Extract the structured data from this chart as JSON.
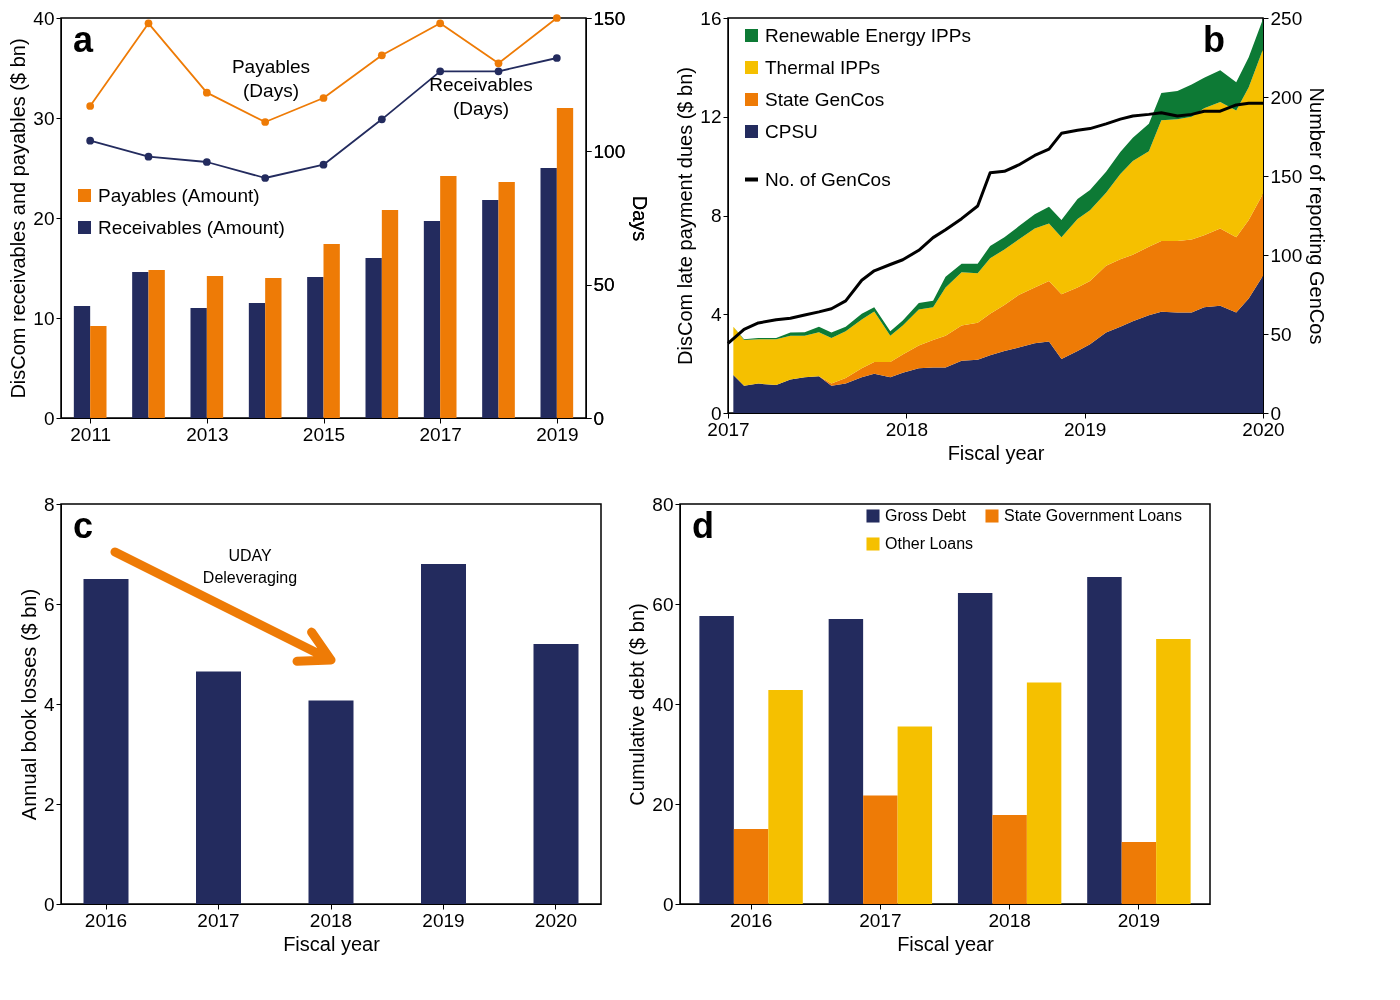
{
  "chart_data": [
    {
      "type": "bar",
      "title": "a",
      "x": [
        2011,
        2012,
        2013,
        2014,
        2015,
        2016,
        2017,
        2018,
        2019
      ],
      "xlim": [
        2010.5,
        2019.5
      ],
      "xticks": [
        2011,
        2013,
        2015,
        2017,
        2019
      ],
      "ylabel": "DisCom receivables and payables ($ bn)",
      "y2label": "Days",
      "ylim": [
        0,
        40
      ],
      "yticks": [
        0,
        10,
        20,
        30,
        40
      ],
      "y2lim": [
        0,
        150
      ],
      "y2ticks": [
        0,
        50,
        100,
        150
      ],
      "legend": "left",
      "marker": "circle",
      "series": [
        {
          "name": "Receivables (Amount)",
          "color": "#232b5e",
          "values": [
            11.2,
            14.6,
            11.0,
            11.5,
            14.1,
            16.0,
            19.7,
            21.8,
            25.0
          ]
        },
        {
          "name": "Payables (Amount)",
          "color": "#ee7b06",
          "values": [
            9.2,
            14.8,
            14.2,
            14.0,
            17.4,
            20.8,
            24.2,
            23.6,
            31.0
          ]
        },
        {
          "name": "Receivables (Days)",
          "type": "line",
          "axis": "y2",
          "color": "#232b5e",
          "values": [
            104,
            98,
            96,
            90,
            95,
            112,
            130,
            130,
            135
          ]
        },
        {
          "name": "Payables (Days)",
          "type": "line",
          "axis": "y2",
          "color": "#ee7b06",
          "values": [
            117,
            148,
            122,
            111,
            120,
            136,
            148,
            133,
            150
          ]
        }
      ]
    },
    {
      "type": "area",
      "stacked": true,
      "title": "b",
      "xlabel": "Fiscal year",
      "ylabel": "DisCom late payment dues ($ bn)",
      "y2label": "Number of reporting GenCos",
      "xlim": [
        2017,
        2020
      ],
      "xticks": [
        2017,
        2018,
        2019,
        2020
      ],
      "ylim": [
        0,
        16
      ],
      "yticks": [
        0,
        4,
        8,
        12,
        16
      ],
      "y2lim": [
        0,
        250
      ],
      "y2ticks": [
        0,
        50,
        100,
        150,
        200,
        250
      ],
      "legend": "top left",
      "x": [
        2017.03,
        2017.09,
        2017.17,
        2017.27,
        2017.35,
        2017.43,
        2017.51,
        2017.58,
        2017.66,
        2017.75,
        2017.82,
        2017.91,
        2017.98,
        2018.07,
        2018.15,
        2018.22,
        2018.31,
        2018.4,
        2018.47,
        2018.55,
        2018.63,
        2018.72,
        2018.8,
        2018.87,
        2018.96,
        2019.03,
        2019.12,
        2019.2,
        2019.27,
        2019.36,
        2019.43,
        2019.52,
        2019.6,
        2019.67,
        2019.76,
        2019.85,
        2019.92,
        2020.0
      ],
      "series": [
        {
          "name": "CPSU",
          "color": "#232b5e",
          "values": [
            1.54,
            1.1,
            1.19,
            1.13,
            1.36,
            1.45,
            1.49,
            1.1,
            1.19,
            1.45,
            1.59,
            1.45,
            1.63,
            1.81,
            1.84,
            1.84,
            2.12,
            2.16,
            2.34,
            2.51,
            2.65,
            2.83,
            2.9,
            2.19,
            2.51,
            2.78,
            3.26,
            3.49,
            3.72,
            3.96,
            4.1,
            4.07,
            4.07,
            4.28,
            4.34,
            4.07,
            4.64,
            5.56
          ]
        },
        {
          "name": "State GenCos",
          "color": "#ee7b06",
          "values": [
            0,
            0,
            0,
            0,
            0,
            0,
            0,
            0.09,
            0.23,
            0.36,
            0.48,
            0.62,
            0.74,
            0.92,
            1.12,
            1.29,
            1.42,
            1.5,
            1.68,
            1.86,
            2.13,
            2.25,
            2.45,
            2.62,
            2.57,
            2.57,
            2.7,
            2.74,
            2.69,
            2.77,
            2.87,
            2.9,
            2.96,
            2.92,
            3.13,
            3.05,
            3.18,
            3.32
          ]
        },
        {
          "name": "Thermal IPPs",
          "color": "#f5c000",
          "values": [
            1.95,
            1.86,
            1.8,
            1.86,
            1.77,
            1.68,
            1.78,
            1.85,
            1.89,
            1.98,
            2.04,
            1.06,
            1.17,
            1.46,
            1.32,
            1.95,
            2.16,
            2.0,
            2.25,
            2.25,
            2.25,
            2.39,
            2.33,
            2.31,
            2.78,
            2.86,
            2.96,
            3.45,
            3.8,
            3.87,
            4.89,
            4.93,
            4.97,
            5.14,
            5.13,
            5.13,
            5.38,
            5.85
          ]
        },
        {
          "name": "Renewable Energy IPPs",
          "color": "#0d7a35",
          "values": [
            0,
            0.03,
            0.05,
            0.05,
            0.13,
            0.14,
            0.22,
            0.22,
            0.18,
            0.23,
            0.17,
            0.18,
            0.21,
            0.27,
            0.27,
            0.44,
            0.35,
            0.39,
            0.49,
            0.5,
            0.53,
            0.58,
            0.67,
            0.7,
            0.81,
            0.82,
            0.85,
            0.89,
            0.94,
            1.12,
            1.1,
            1.14,
            1.31,
            1.24,
            1.28,
            1.15,
            1.21,
            1.23
          ]
        },
        {
          "name": "No. of GenCos",
          "type": "line",
          "axis": "y2",
          "color": "#000000",
          "x": [
            2017.0,
            2017.09,
            2017.17,
            2017.27,
            2017.35,
            2017.43,
            2017.51,
            2017.58,
            2017.66,
            2017.75,
            2017.82,
            2017.91,
            2017.98,
            2018.07,
            2018.15,
            2018.22,
            2018.31,
            2018.4,
            2018.47,
            2018.55,
            2018.63,
            2018.72,
            2018.8,
            2018.87,
            2018.96,
            2019.03,
            2019.12,
            2019.2,
            2019.27,
            2019.36,
            2019.43,
            2019.52,
            2019.6,
            2019.67,
            2019.76,
            2019.85,
            2019.92,
            2020.0
          ],
          "values": [
            44,
            53,
            57,
            59,
            60,
            62,
            64,
            66,
            71,
            84,
            90,
            94,
            97,
            103,
            111,
            116,
            123,
            131,
            152,
            153,
            157,
            163,
            167,
            177,
            179,
            180,
            183,
            186,
            188,
            189,
            190,
            188,
            189,
            191,
            191,
            195,
            196,
            196
          ]
        }
      ]
    },
    {
      "type": "bar",
      "title": "c",
      "categories": [
        "2016",
        "2017",
        "2018",
        "2019",
        "2020"
      ],
      "values": [
        6.5,
        4.65,
        4.07,
        6.8,
        5.2
      ],
      "color": "#232b5e",
      "xlabel": "Fiscal year",
      "ylabel": "Annual book losses ($ bn)",
      "ylim": [
        0,
        8
      ],
      "yticks": [
        0,
        2,
        4,
        6,
        8
      ],
      "annotations": [
        "UDAY Deleveraging"
      ]
    },
    {
      "type": "bar",
      "title": "d",
      "categories": [
        "2016",
        "2017",
        "2018",
        "2019"
      ],
      "xlabel": "Fiscal year",
      "ylabel": "Cumulative debt ($ bn)",
      "ylim": [
        0,
        80
      ],
      "yticks": [
        0,
        20,
        40,
        60,
        80
      ],
      "legend": "top right",
      "series": [
        {
          "name": "Gross Debt",
          "color": "#232b5e",
          "values": [
            57.6,
            57.0,
            62.2,
            65.4
          ]
        },
        {
          "name": "State Government Loans",
          "color": "#ee7b06",
          "values": [
            15.0,
            21.7,
            17.8,
            12.4
          ]
        },
        {
          "name": "Other Loans",
          "color": "#f5c000",
          "values": [
            42.8,
            35.5,
            44.3,
            53.0
          ]
        }
      ]
    }
  ]
}
